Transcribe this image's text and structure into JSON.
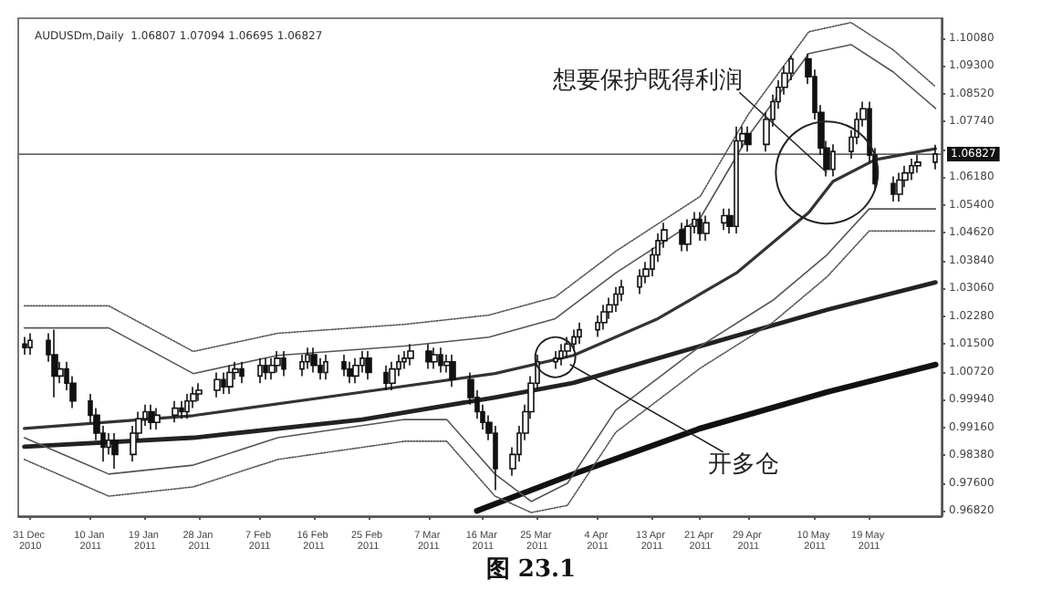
{
  "chart_data": {
    "type": "candlestick",
    "title": "AUDUSDm,Daily  1.06807 1.07094 1.06695 1.06827",
    "color": "#111111",
    "x": [
      "2010-12-30",
      "2010-12-31",
      "2011-01-03",
      "2011-01-04",
      "2011-01-05",
      "2011-01-06",
      "2011-01-07",
      "2011-01-10",
      "2011-01-11",
      "2011-01-12",
      "2011-01-13",
      "2011-01-14",
      "2011-01-17",
      "2011-01-18",
      "2011-01-19",
      "2011-01-20",
      "2011-01-21",
      "2011-01-24",
      "2011-01-25",
      "2011-01-26",
      "2011-01-27",
      "2011-01-28",
      "2011-01-31",
      "2011-02-01",
      "2011-02-02",
      "2011-02-03",
      "2011-02-04",
      "2011-02-07",
      "2011-02-08",
      "2011-02-09",
      "2011-02-10",
      "2011-02-11",
      "2011-02-14",
      "2011-02-15",
      "2011-02-16",
      "2011-02-17",
      "2011-02-18",
      "2011-02-21",
      "2011-02-22",
      "2011-02-23",
      "2011-02-24",
      "2011-02-25",
      "2011-02-28",
      "2011-03-01",
      "2011-03-02",
      "2011-03-03",
      "2011-03-04",
      "2011-03-07",
      "2011-03-08",
      "2011-03-09",
      "2011-03-10",
      "2011-03-11",
      "2011-03-14",
      "2011-03-15",
      "2011-03-16",
      "2011-03-17",
      "2011-03-18",
      "2011-03-21",
      "2011-03-22",
      "2011-03-23",
      "2011-03-24",
      "2011-03-25",
      "2011-03-28",
      "2011-03-29",
      "2011-03-30",
      "2011-03-31",
      "2011-04-01",
      "2011-04-04",
      "2011-04-05",
      "2011-04-06",
      "2011-04-07",
      "2011-04-08",
      "2011-04-11",
      "2011-04-12",
      "2011-04-13",
      "2011-04-14",
      "2011-04-15",
      "2011-04-18",
      "2011-04-19",
      "2011-04-20",
      "2011-04-21",
      "2011-04-22",
      "2011-04-25",
      "2011-04-26",
      "2011-04-27",
      "2011-04-28",
      "2011-04-29",
      "2011-05-02",
      "2011-05-03",
      "2011-05-04",
      "2011-05-05",
      "2011-05-06",
      "2011-05-09",
      "2011-05-10",
      "2011-05-11",
      "2011-05-12",
      "2011-05-13",
      "2011-05-16",
      "2011-05-17",
      "2011-05-18",
      "2011-05-19",
      "2011-05-20",
      "2011-05-23",
      "2011-05-24",
      "2011-05-25",
      "2011-05-26",
      "2011-05-27",
      "2011-05-30"
    ],
    "ohlc": [
      [
        1.015,
        1.017,
        1.012,
        1.014
      ],
      [
        1.014,
        1.018,
        1.012,
        1.016
      ],
      [
        1.016,
        1.018,
        1.01,
        1.012
      ],
      [
        1.012,
        1.019,
        1.0,
        1.006
      ],
      [
        1.006,
        1.01,
        1.004,
        1.008
      ],
      [
        1.008,
        1.01,
        1.002,
        1.004
      ],
      [
        1.004,
        1.006,
        0.997,
        0.999
      ],
      [
        0.999,
        1.001,
        0.993,
        0.995
      ],
      [
        0.995,
        0.997,
        0.988,
        0.99
      ],
      [
        0.99,
        0.992,
        0.982,
        0.986
      ],
      [
        0.986,
        0.99,
        0.984,
        0.988
      ],
      [
        0.988,
        0.99,
        0.98,
        0.984
      ],
      [
        0.984,
        0.992,
        0.982,
        0.99
      ],
      [
        0.99,
        0.996,
        0.988,
        0.994
      ],
      [
        0.994,
        0.998,
        0.992,
        0.996
      ],
      [
        0.996,
        0.998,
        0.991,
        0.993
      ],
      [
        0.993,
        0.997,
        0.991,
        0.995
      ],
      [
        0.995,
        0.999,
        0.993,
        0.997
      ],
      [
        0.997,
        0.999,
        0.994,
        0.996
      ],
      [
        0.996,
        1.001,
        0.994,
        0.999
      ],
      [
        0.999,
        1.003,
        0.997,
        1.001
      ],
      [
        1.001,
        1.004,
        0.999,
        1.002
      ],
      [
        1.002,
        1.007,
        1.0,
        1.005
      ],
      [
        1.005,
        1.007,
        1.001,
        1.003
      ],
      [
        1.003,
        1.009,
        1.001,
        1.007
      ],
      [
        1.007,
        1.01,
        1.005,
        1.008
      ],
      [
        1.008,
        1.01,
        1.004,
        1.006
      ],
      [
        1.006,
        1.011,
        1.004,
        1.009
      ],
      [
        1.009,
        1.011,
        1.005,
        1.007
      ],
      [
        1.007,
        1.011,
        1.005,
        1.009
      ],
      [
        1.009,
        1.013,
        1.007,
        1.011
      ],
      [
        1.011,
        1.013,
        1.006,
        1.008
      ],
      [
        1.008,
        1.012,
        1.006,
        1.01
      ],
      [
        1.01,
        1.014,
        1.008,
        1.012
      ],
      [
        1.012,
        1.014,
        1.007,
        1.009
      ],
      [
        1.009,
        1.011,
        1.005,
        1.007
      ],
      [
        1.007,
        1.012,
        1.005,
        1.01
      ],
      [
        1.01,
        1.012,
        1.006,
        1.008
      ],
      [
        1.008,
        1.01,
        1.004,
        1.006
      ],
      [
        1.006,
        1.011,
        1.004,
        1.009
      ],
      [
        1.009,
        1.013,
        1.007,
        1.011
      ],
      [
        1.011,
        1.013,
        1.005,
        1.007
      ],
      [
        1.007,
        1.009,
        1.002,
        1.004
      ],
      [
        1.004,
        1.01,
        1.002,
        1.008
      ],
      [
        1.008,
        1.012,
        1.006,
        1.01
      ],
      [
        1.01,
        1.013,
        1.008,
        1.011
      ],
      [
        1.011,
        1.015,
        1.009,
        1.013
      ],
      [
        1.013,
        1.015,
        1.008,
        1.01
      ],
      [
        1.01,
        1.014,
        1.008,
        1.012
      ],
      [
        1.012,
        1.014,
        1.007,
        1.009
      ],
      [
        1.009,
        1.012,
        1.007,
        1.01
      ],
      [
        1.01,
        1.012,
        1.003,
        1.005
      ],
      [
        1.005,
        1.007,
        0.998,
        1.0
      ],
      [
        1.0,
        1.002,
        0.994,
        0.996
      ],
      [
        0.996,
        0.998,
        0.991,
        0.993
      ],
      [
        0.993,
        0.995,
        0.988,
        0.99
      ],
      [
        0.99,
        0.992,
        0.974,
        0.98
      ],
      [
        0.98,
        0.986,
        0.978,
        0.984
      ],
      [
        0.984,
        0.992,
        0.982,
        0.99
      ],
      [
        0.99,
        0.998,
        0.988,
        0.996
      ],
      [
        0.996,
        1.006,
        0.994,
        1.004
      ],
      [
        1.004,
        1.012,
        1.002,
        1.01
      ],
      [
        1.01,
        1.013,
        1.008,
        1.011
      ],
      [
        1.011,
        1.015,
        1.009,
        1.013
      ],
      [
        1.013,
        1.017,
        1.011,
        1.015
      ],
      [
        1.015,
        1.019,
        1.013,
        1.017
      ],
      [
        1.017,
        1.021,
        1.015,
        1.019
      ],
      [
        1.019,
        1.023,
        1.017,
        1.021
      ],
      [
        1.021,
        1.026,
        1.019,
        1.024
      ],
      [
        1.024,
        1.028,
        1.022,
        1.026
      ],
      [
        1.026,
        1.031,
        1.024,
        1.029
      ],
      [
        1.029,
        1.033,
        1.027,
        1.031
      ],
      [
        1.031,
        1.036,
        1.029,
        1.034
      ],
      [
        1.034,
        1.038,
        1.032,
        1.036
      ],
      [
        1.036,
        1.042,
        1.034,
        1.04
      ],
      [
        1.04,
        1.046,
        1.038,
        1.044
      ],
      [
        1.044,
        1.049,
        1.042,
        1.047
      ],
      [
        1.047,
        1.049,
        1.041,
        1.043
      ],
      [
        1.043,
        1.05,
        1.041,
        1.048
      ],
      [
        1.048,
        1.052,
        1.046,
        1.05
      ],
      [
        1.05,
        1.052,
        1.044,
        1.046
      ],
      [
        1.046,
        1.051,
        1.044,
        1.049
      ],
      [
        1.049,
        1.053,
        1.047,
        1.051
      ],
      [
        1.051,
        1.053,
        1.046,
        1.048
      ],
      [
        1.048,
        1.076,
        1.046,
        1.072
      ],
      [
        1.072,
        1.076,
        1.07,
        1.074
      ],
      [
        1.074,
        1.076,
        1.069,
        1.071
      ],
      [
        1.071,
        1.08,
        1.069,
        1.078
      ],
      [
        1.078,
        1.085,
        1.076,
        1.083
      ],
      [
        1.083,
        1.089,
        1.081,
        1.087
      ],
      [
        1.087,
        1.093,
        1.085,
        1.091
      ],
      [
        1.091,
        1.096,
        1.089,
        1.095
      ],
      [
        1.095,
        1.0965,
        1.088,
        1.09
      ],
      [
        1.09,
        1.092,
        1.078,
        1.08
      ],
      [
        1.08,
        1.082,
        1.068,
        1.07
      ],
      [
        1.07,
        1.072,
        1.062,
        1.064
      ],
      [
        1.064,
        1.071,
        1.062,
        1.069
      ],
      [
        1.069,
        1.075,
        1.067,
        1.073
      ],
      [
        1.073,
        1.08,
        1.071,
        1.078
      ],
      [
        1.078,
        1.083,
        1.076,
        1.081
      ],
      [
        1.081,
        1.083,
        1.066,
        1.068
      ],
      [
        1.068,
        1.07,
        1.058,
        1.06
      ],
      [
        1.06,
        1.062,
        1.055,
        1.057
      ],
      [
        1.057,
        1.063,
        1.055,
        1.061
      ],
      [
        1.061,
        1.065,
        1.059,
        1.063
      ],
      [
        1.063,
        1.067,
        1.061,
        1.065
      ],
      [
        1.065,
        1.068,
        1.063,
        1.066
      ],
      [
        1.066,
        1.0709,
        1.064,
        1.0683
      ]
    ],
    "series": [
      {
        "type": "line",
        "color": "#333333",
        "line_style": "solid",
        "x": [
          "2010-12-30",
          "2011-01-27",
          "2011-02-24",
          "2011-03-18",
          "2011-03-31",
          "2011-04-14",
          "2011-04-27",
          "2011-05-09",
          "2011-05-13",
          "2011-05-20",
          "2011-05-30"
        ],
        "values": [
          0.9913,
          0.9949,
          1.0015,
          1.0067,
          1.0118,
          1.0221,
          1.0349,
          1.0519,
          1.0606,
          1.0667,
          1.0698
        ]
      },
      {
        "type": "line",
        "color": "#222222",
        "line_style": "solid",
        "x": [
          "2010-12-30",
          "2011-01-27",
          "2011-02-24",
          "2011-03-18",
          "2011-03-31",
          "2011-04-21",
          "2011-05-12",
          "2011-05-30"
        ],
        "values": [
          0.9862,
          0.9887,
          0.9938,
          1.0,
          1.0041,
          1.0144,
          1.0246,
          1.0323
        ]
      },
      {
        "type": "line",
        "color": "#111111",
        "line_style": "solid",
        "x": [
          "2011-03-15",
          "2011-03-31",
          "2011-04-21",
          "2011-05-12",
          "2011-05-30"
        ],
        "values": [
          0.9682,
          0.9785,
          0.9913,
          1.0015,
          1.0092
        ]
      },
      {
        "type": "line",
        "color": "#555555",
        "line_style": "solid",
        "x": [
          "2010-12-30",
          "2011-01-13",
          "2011-01-27",
          "2011-02-10",
          "2011-03-03",
          "2011-03-17",
          "2011-03-28",
          "2011-04-07",
          "2011-04-21",
          "2011-04-29",
          "2011-05-09",
          "2011-05-16",
          "2011-05-23",
          "2011-05-30"
        ],
        "values": [
          1.0195,
          1.0195,
          1.0067,
          1.0118,
          1.0144,
          1.0169,
          1.0221,
          1.0349,
          1.0503,
          1.0734,
          1.0965,
          1.099,
          1.0913,
          1.0811
        ]
      },
      {
        "type": "line",
        "color": "#555555",
        "line_style": "dotted",
        "x": [
          "2010-12-30",
          "2011-01-13",
          "2011-01-27",
          "2011-02-10",
          "2011-03-03",
          "2011-03-17",
          "2011-03-28",
          "2011-04-07",
          "2011-04-21",
          "2011-04-29",
          "2011-05-09",
          "2011-05-16",
          "2011-05-23",
          "2011-05-30"
        ],
        "values": [
          1.0257,
          1.0257,
          1.0129,
          1.018,
          1.0205,
          1.0231,
          1.0282,
          1.041,
          1.0564,
          1.0795,
          1.1026,
          1.1052,
          1.0975,
          1.0872
        ]
      },
      {
        "type": "line",
        "color": "#555555",
        "line_style": "solid",
        "x": [
          "2010-12-30",
          "2011-01-13",
          "2011-01-27",
          "2011-02-10",
          "2011-03-03",
          "2011-03-10",
          "2011-03-18",
          "2011-03-24",
          "2011-03-30",
          "2011-04-07",
          "2011-04-21",
          "2011-05-03",
          "2011-05-12",
          "2011-05-19",
          "2011-05-30"
        ],
        "values": [
          0.9887,
          0.9785,
          0.981,
          0.9887,
          0.9938,
          0.9938,
          0.9785,
          0.9708,
          0.9759,
          0.9964,
          1.0144,
          1.0272,
          1.04,
          1.0529,
          1.0529
        ]
      },
      {
        "type": "line",
        "color": "#555555",
        "line_style": "dotted",
        "x": [
          "2010-12-30",
          "2011-01-13",
          "2011-01-27",
          "2011-02-10",
          "2011-03-03",
          "2011-03-10",
          "2011-03-18",
          "2011-03-24",
          "2011-03-30",
          "2011-04-07",
          "2011-04-21",
          "2011-05-03",
          "2011-05-12",
          "2011-05-19",
          "2011-05-30"
        ],
        "values": [
          0.9826,
          0.9723,
          0.9749,
          0.9826,
          0.9877,
          0.9877,
          0.9723,
          0.9677,
          0.9697,
          0.9902,
          1.0082,
          1.021,
          1.0338,
          1.0467,
          1.0467
        ]
      }
    ],
    "xlim": [
      "2010-12-29",
      "2011-05-31"
    ],
    "xticks": [
      {
        "value": "2010-12-31",
        "label": "31 Dec 2010"
      },
      {
        "value": "2011-01-10",
        "label": "10 Jan 2011"
      },
      {
        "value": "2011-01-19",
        "label": "19 Jan 2011"
      },
      {
        "value": "2011-01-28",
        "label": "28 Jan 2011"
      },
      {
        "value": "2011-02-07",
        "label": "7 Feb 2011"
      },
      {
        "value": "2011-02-16",
        "label": "16 Feb 2011"
      },
      {
        "value": "2011-02-25",
        "label": "25 Feb 2011"
      },
      {
        "value": "2011-03-07",
        "label": "7 Mar 2011"
      },
      {
        "value": "2011-03-16",
        "label": "16 Mar 2011"
      },
      {
        "value": "2011-03-25",
        "label": "25 Mar 2011"
      },
      {
        "value": "2011-04-04",
        "label": "4 Apr 2011"
      },
      {
        "value": "2011-04-13",
        "label": "13 Apr 2011"
      },
      {
        "value": "2011-04-21",
        "label": "21 Apr 2011"
      },
      {
        "value": "2011-04-29",
        "label": "29 Apr 2011"
      },
      {
        "value": "2011-05-10",
        "label": "10 May 2011"
      },
      {
        "value": "2011-05-19",
        "label": "19 May 2011"
      }
    ],
    "ylim": [
      0.9667,
      1.1064
    ],
    "yticks": [
      {
        "value": 0.9682,
        "label": "0.96820"
      },
      {
        "value": 0.976,
        "label": "0.97600"
      },
      {
        "value": 0.9838,
        "label": "0.98380"
      },
      {
        "value": 0.9916,
        "label": "0.99160"
      },
      {
        "value": 0.9994,
        "label": "0.99940"
      },
      {
        "value": 1.0072,
        "label": "1.00720"
      },
      {
        "value": 1.015,
        "label": "1.01500"
      },
      {
        "value": 1.0228,
        "label": "1.02280"
      },
      {
        "value": 1.0306,
        "label": "1.03060"
      },
      {
        "value": 1.0384,
        "label": "1.03840"
      },
      {
        "value": 1.0462,
        "label": "1.04620"
      },
      {
        "value": 1.054,
        "label": "1.05400"
      },
      {
        "value": 1.0618,
        "label": "1.06180"
      },
      {
        "value": 1.0696,
        "label": null
      },
      {
        "value": 1.0774,
        "label": "1.07740"
      },
      {
        "value": 1.0852,
        "label": "1.08520"
      },
      {
        "value": 1.093,
        "label": "1.09300"
      },
      {
        "value": 1.1008,
        "label": "1.10080"
      }
    ],
    "ref_lines": [
      {
        "axis": "y",
        "value": 1.06827,
        "label": "1.06827",
        "color": "#666666",
        "line_style": "solid"
      }
    ],
    "annotations": [
      {
        "text": "想要保护既得利润",
        "x": "2011-05-12",
        "y": 1.0631
      },
      {
        "text": "开多仓",
        "x": "2011-03-28",
        "y": 1.0113
      },
      "图 23.1"
    ],
    "grid": false
  }
}
